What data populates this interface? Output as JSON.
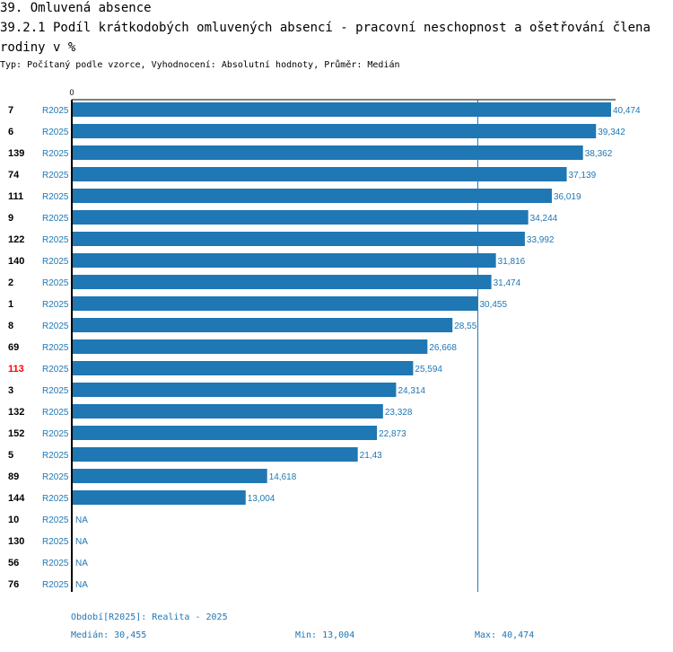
{
  "header": {
    "title": "39. Omluvená absence",
    "subtitle_title": "39.2.1 Podíl krátkodobých omluvených absencí -  pracovní neschopnost a ošetřování člena rodiny v %",
    "description": "Typ: Počítaný podle vzorce, Vyhodnocení: Absolutní hodnoty, Průměr: Medián"
  },
  "chart_data": {
    "type": "bar",
    "orientation": "horizontal",
    "axis_zero_label": "0",
    "xlim": [
      0,
      40.474
    ],
    "series_name": "R2025",
    "highlight_category": "113",
    "categories": [
      "7",
      "6",
      "139",
      "74",
      "111",
      "9",
      "122",
      "140",
      "2",
      "1",
      "8",
      "69",
      "113",
      "3",
      "132",
      "152",
      "5",
      "89",
      "144",
      "10",
      "130",
      "56",
      "76"
    ],
    "values": [
      40.474,
      39.342,
      38.362,
      37.139,
      36.019,
      34.244,
      33.992,
      31.816,
      31.474,
      30.455,
      28.55,
      26.668,
      25.594,
      24.314,
      23.328,
      22.873,
      21.43,
      14.618,
      13.004,
      null,
      null,
      null,
      null
    ],
    "value_labels": [
      "40,474",
      "39,342",
      "38,362",
      "37,139",
      "36,019",
      "34,244",
      "33,992",
      "31,816",
      "31,474",
      "30,455",
      "28,55",
      "26,668",
      "25,594",
      "24,314",
      "23,328",
      "22,873",
      "21,43",
      "14,618",
      "13,004",
      "NA",
      "NA",
      "NA",
      "NA"
    ],
    "median_line": 30.455,
    "colors": {
      "bar": "#1f77b4",
      "label": "#1f77b4",
      "highlight": "#ff0000",
      "axis": "#000000"
    }
  },
  "footer": {
    "period": "Období[R2025]: Realita - 2025",
    "median": "Medián: 30,455",
    "min": "Min: 13,004",
    "max": "Max: 40,474"
  }
}
